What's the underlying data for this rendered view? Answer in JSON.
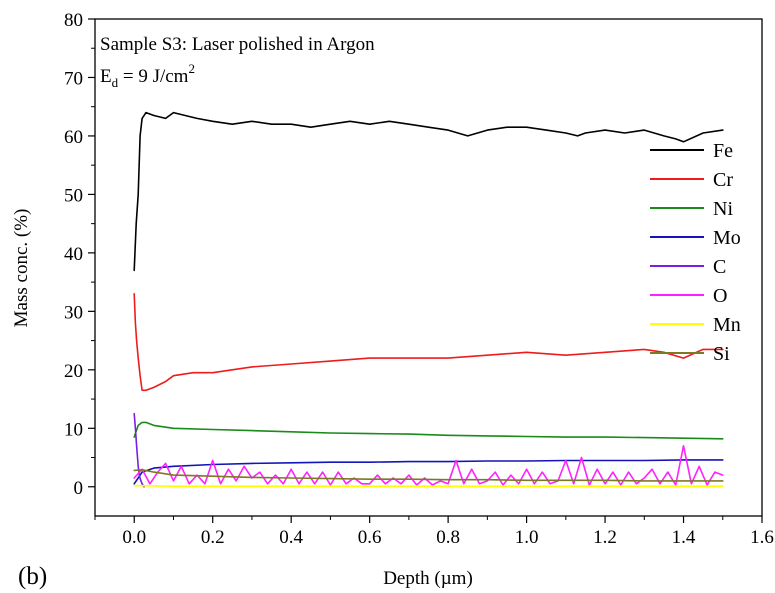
{
  "panel_label": "(b)",
  "annotation": {
    "line1": "Sample S3: Laser polished in Argon",
    "line2_prefix": "E",
    "line2_sub": "d",
    "line2_mid": " = 9 J/cm",
    "line2_sup": "2"
  },
  "chart_data": {
    "type": "line",
    "title": "",
    "xlabel": "Depth (µm)",
    "ylabel": "Mass conc. (%)",
    "xlim": [
      -0.1,
      1.6
    ],
    "ylim": [
      -5,
      80
    ],
    "xticks": [
      0.0,
      0.2,
      0.4,
      0.6,
      0.8,
      1.0,
      1.2,
      1.4,
      1.6
    ],
    "xtick_labels": [
      "0.0",
      "0.2",
      "0.4",
      "0.6",
      "0.8",
      "1.0",
      "1.2",
      "1.4",
      "1.6"
    ],
    "yticks": [
      0,
      10,
      20,
      30,
      40,
      50,
      60,
      70,
      80
    ],
    "ytick_labels": [
      "0",
      "10",
      "20",
      "30",
      "40",
      "50",
      "60",
      "70",
      "80"
    ],
    "grid": false,
    "legend_position": "right",
    "series": [
      {
        "name": "Fe",
        "color": "#000000",
        "x": [
          0.0,
          0.005,
          0.01,
          0.015,
          0.02,
          0.03,
          0.05,
          0.08,
          0.1,
          0.13,
          0.16,
          0.2,
          0.25,
          0.3,
          0.35,
          0.4,
          0.45,
          0.5,
          0.55,
          0.6,
          0.65,
          0.7,
          0.75,
          0.8,
          0.85,
          0.9,
          0.95,
          1.0,
          1.05,
          1.1,
          1.13,
          1.15,
          1.2,
          1.25,
          1.3,
          1.35,
          1.38,
          1.4,
          1.45,
          1.5
        ],
        "y": [
          37,
          45,
          50,
          60,
          63,
          64,
          63.5,
          63,
          64,
          63.5,
          63,
          62.5,
          62,
          62.5,
          62,
          62,
          61.5,
          62,
          62.5,
          62,
          62.5,
          62,
          61.5,
          61,
          60,
          61,
          61.5,
          61.5,
          61,
          60.5,
          60,
          60.5,
          61,
          60.5,
          61,
          60,
          59.5,
          59,
          60.5,
          61
        ]
      },
      {
        "name": "Cr",
        "color": "#ee1c1c",
        "x": [
          0.0,
          0.003,
          0.006,
          0.01,
          0.015,
          0.02,
          0.03,
          0.05,
          0.08,
          0.1,
          0.15,
          0.2,
          0.3,
          0.4,
          0.5,
          0.6,
          0.7,
          0.8,
          0.9,
          1.0,
          1.1,
          1.2,
          1.3,
          1.35,
          1.4,
          1.45,
          1.5
        ],
        "y": [
          33,
          28,
          25,
          22,
          19,
          16.5,
          16.5,
          17,
          18,
          19,
          19.5,
          19.5,
          20.5,
          21,
          21.5,
          22,
          22,
          22,
          22.5,
          23,
          22.5,
          23,
          23.5,
          23,
          22,
          23.5,
          23.5
        ]
      },
      {
        "name": "Ni",
        "color": "#1a8a1a",
        "x": [
          0.0,
          0.005,
          0.01,
          0.02,
          0.03,
          0.05,
          0.1,
          0.2,
          0.3,
          0.4,
          0.5,
          0.6,
          0.7,
          0.8,
          0.9,
          1.0,
          1.1,
          1.2,
          1.3,
          1.4,
          1.5
        ],
        "y": [
          8.5,
          9.5,
          10.5,
          11,
          11,
          10.5,
          10,
          9.8,
          9.6,
          9.4,
          9.2,
          9.1,
          9,
          8.8,
          8.7,
          8.6,
          8.5,
          8.5,
          8.4,
          8.3,
          8.2
        ]
      },
      {
        "name": "Mo",
        "color": "#1414b8",
        "x": [
          0.0,
          0.01,
          0.02,
          0.05,
          0.1,
          0.2,
          0.3,
          0.4,
          0.5,
          0.6,
          0.7,
          0.8,
          0.9,
          1.0,
          1.1,
          1.2,
          1.3,
          1.4,
          1.5
        ],
        "y": [
          0.5,
          1.5,
          2.5,
          3.2,
          3.5,
          3.8,
          4.0,
          4.1,
          4.2,
          4.2,
          4.3,
          4.3,
          4.4,
          4.4,
          4.5,
          4.5,
          4.5,
          4.6,
          4.6
        ]
      },
      {
        "name": "C",
        "color": "#7a1ee0",
        "x": [
          0.0,
          0.003,
          0.006,
          0.01,
          0.013,
          0.016,
          0.02,
          0.025
        ],
        "y": [
          12.5,
          10,
          7,
          3.5,
          2,
          1.2,
          0.5,
          0
        ]
      },
      {
        "name": "O",
        "color": "#ff22ff",
        "x": [
          0.0,
          0.02,
          0.04,
          0.06,
          0.08,
          0.1,
          0.12,
          0.14,
          0.16,
          0.18,
          0.2,
          0.22,
          0.24,
          0.26,
          0.28,
          0.3,
          0.32,
          0.34,
          0.36,
          0.38,
          0.4,
          0.42,
          0.44,
          0.46,
          0.48,
          0.5,
          0.52,
          0.54,
          0.56,
          0.58,
          0.6,
          0.62,
          0.64,
          0.66,
          0.68,
          0.7,
          0.72,
          0.74,
          0.76,
          0.78,
          0.8,
          0.82,
          0.84,
          0.86,
          0.88,
          0.9,
          0.92,
          0.94,
          0.96,
          0.98,
          1.0,
          1.02,
          1.04,
          1.06,
          1.08,
          1.1,
          1.12,
          1.14,
          1.16,
          1.18,
          1.2,
          1.22,
          1.24,
          1.26,
          1.28,
          1.3,
          1.32,
          1.34,
          1.36,
          1.38,
          1.4,
          1.42,
          1.44,
          1.46,
          1.48,
          1.5
        ],
        "y": [
          1.5,
          3,
          0.5,
          2.5,
          4,
          1,
          3.5,
          0.5,
          2,
          0.5,
          4.5,
          0.5,
          3,
          1,
          3.5,
          1.5,
          2.5,
          0.5,
          2,
          0.5,
          3,
          0.5,
          2.5,
          0.5,
          2.5,
          0.3,
          2.5,
          0.5,
          1.5,
          0.5,
          0.5,
          2,
          0.5,
          1.5,
          0.5,
          2,
          0.3,
          1.5,
          0.3,
          1,
          0.5,
          4.5,
          0.5,
          3,
          0.5,
          1,
          2.5,
          0.3,
          2,
          0.5,
          3,
          0.5,
          2.5,
          0.5,
          1,
          4.5,
          0.5,
          5,
          0.3,
          3,
          0.5,
          2.5,
          0.3,
          2.5,
          0.5,
          1.5,
          3,
          0.5,
          2.5,
          0.3,
          7,
          0.5,
          3.5,
          0.3,
          2.5,
          2
        ]
      },
      {
        "name": "Mn",
        "color": "#ffff00",
        "x": [
          0.0,
          0.1,
          0.3,
          0.5,
          0.7,
          0.9,
          1.1,
          1.3,
          1.5
        ],
        "y": [
          0.2,
          0.1,
          0.1,
          0.1,
          0.1,
          0.1,
          0.1,
          0.1,
          0.1
        ]
      },
      {
        "name": "Si",
        "color": "#7d7823",
        "x": [
          0.0,
          0.02,
          0.05,
          0.1,
          0.2,
          0.3,
          0.4,
          0.5,
          0.6,
          0.7,
          0.8,
          0.9,
          1.0,
          1.1,
          1.2,
          1.3,
          1.4,
          1.5
        ],
        "y": [
          2.8,
          2.9,
          2.5,
          2.0,
          1.8,
          1.6,
          1.5,
          1.4,
          1.3,
          1.3,
          1.2,
          1.2,
          1.1,
          1.1,
          1.1,
          1.0,
          1.0,
          1.0
        ]
      }
    ]
  }
}
